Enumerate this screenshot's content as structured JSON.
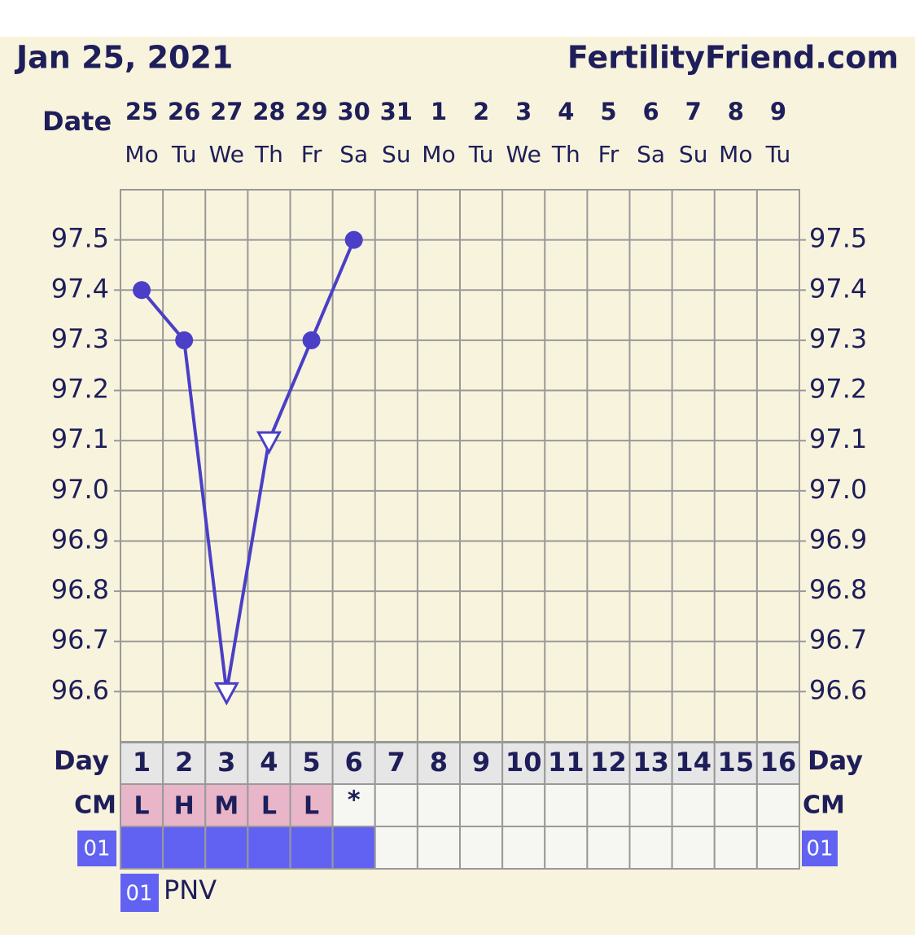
{
  "chart_data": {
    "type": "line",
    "title": "Jan 25, 2021",
    "site": "FertilityFriend.com",
    "date_label": "Date",
    "categories": [
      "25",
      "26",
      "27",
      "28",
      "29",
      "30",
      "31",
      "1",
      "2",
      "3",
      "4",
      "5",
      "6",
      "7",
      "8",
      "9"
    ],
    "weekdays": [
      "Mo",
      "Tu",
      "We",
      "Th",
      "Fr",
      "Sa",
      "Su",
      "Mo",
      "Tu",
      "We",
      "Th",
      "Fr",
      "Sa",
      "Su",
      "Mo",
      "Tu"
    ],
    "values": [
      97.4,
      97.3,
      96.6,
      97.1,
      97.3,
      97.5,
      null,
      null,
      null,
      null,
      null,
      null,
      null,
      null,
      null,
      null
    ],
    "markers": [
      "circle",
      "circle",
      "triangle",
      "triangle",
      "circle",
      "circle",
      null,
      null,
      null,
      null,
      null,
      null,
      null,
      null,
      null,
      null
    ],
    "color": "#4a3fc6",
    "ylim": [
      96.5,
      97.6
    ],
    "yticks": [
      96.6,
      96.7,
      96.8,
      96.9,
      {
        "value": 97.0,
        "label": "97.0"
      },
      97.1,
      97.2,
      97.3,
      97.4,
      97.5
    ],
    "grid": true,
    "day_label": "Day",
    "days": [
      1,
      2,
      3,
      4,
      5,
      6,
      7,
      8,
      9,
      10,
      11,
      12,
      13,
      14,
      15,
      16
    ],
    "cm_label": "CM",
    "cm": [
      "L",
      "H",
      "M",
      "L",
      "L",
      "*",
      null,
      null,
      null,
      null,
      null,
      null,
      null,
      null,
      null,
      null
    ],
    "cm_color": "#e8b6c8",
    "pill_row": {
      "label": "01",
      "color": "#6262f2",
      "taken": [
        true,
        true,
        true,
        true,
        true,
        true,
        false,
        false,
        false,
        false,
        false,
        false,
        false,
        false,
        false,
        false
      ]
    },
    "legend": {
      "code": "01",
      "name": "PNV"
    }
  }
}
